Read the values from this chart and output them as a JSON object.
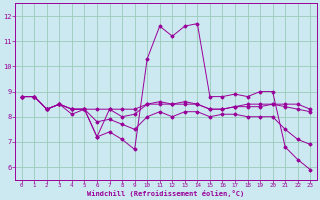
{
  "xlabel": "Windchill (Refroidissement éolien,°C)",
  "xlim": [
    -0.5,
    23.5
  ],
  "ylim": [
    5.5,
    12.5
  ],
  "yticks": [
    6,
    7,
    8,
    9,
    10,
    11,
    12
  ],
  "xticks": [
    0,
    1,
    2,
    3,
    4,
    5,
    6,
    7,
    8,
    9,
    10,
    11,
    12,
    13,
    14,
    15,
    16,
    17,
    18,
    19,
    20,
    21,
    22,
    23
  ],
  "bg_color": "#cce8f0",
  "line_color": "#990099",
  "grid_color": "#99ccbb",
  "lines": [
    {
      "x": [
        0,
        1,
        2,
        3,
        4,
        5,
        6,
        7,
        8,
        9,
        10,
        11,
        12,
        13,
        14,
        15,
        16,
        17,
        18,
        19,
        20,
        21,
        22,
        23
      ],
      "y": [
        8.8,
        8.8,
        8.3,
        8.5,
        8.3,
        8.3,
        7.2,
        7.4,
        7.1,
        6.7,
        10.3,
        11.6,
        11.2,
        11.6,
        11.7,
        8.8,
        8.8,
        8.9,
        8.8,
        9.0,
        9.0,
        6.8,
        6.3,
        5.9
      ]
    },
    {
      "x": [
        0,
        1,
        2,
        3,
        4,
        5,
        6,
        7,
        8,
        9,
        10,
        11,
        12,
        13,
        14,
        15,
        16,
        17,
        18,
        19,
        20,
        21,
        22,
        23
      ],
      "y": [
        8.8,
        8.8,
        8.3,
        8.5,
        8.3,
        8.3,
        8.3,
        8.3,
        8.3,
        8.3,
        8.5,
        8.5,
        8.5,
        8.5,
        8.5,
        8.3,
        8.3,
        8.4,
        8.5,
        8.5,
        8.5,
        8.5,
        8.5,
        8.3
      ]
    },
    {
      "x": [
        0,
        1,
        2,
        3,
        4,
        5,
        6,
        7,
        8,
        9,
        10,
        11,
        12,
        13,
        14,
        15,
        16,
        17,
        18,
        19,
        20,
        21,
        22,
        23
      ],
      "y": [
        8.8,
        8.8,
        8.3,
        8.5,
        8.1,
        8.3,
        7.2,
        8.3,
        8.0,
        8.1,
        8.5,
        8.6,
        8.5,
        8.6,
        8.5,
        8.3,
        8.3,
        8.4,
        8.4,
        8.4,
        8.5,
        8.4,
        8.3,
        8.2
      ]
    },
    {
      "x": [
        0,
        1,
        2,
        3,
        4,
        5,
        6,
        7,
        8,
        9,
        10,
        11,
        12,
        13,
        14,
        15,
        16,
        17,
        18,
        19,
        20,
        21,
        22,
        23
      ],
      "y": [
        8.8,
        8.8,
        8.3,
        8.5,
        8.3,
        8.3,
        7.8,
        7.9,
        7.7,
        7.5,
        8.0,
        8.2,
        8.0,
        8.2,
        8.2,
        8.0,
        8.1,
        8.1,
        8.0,
        8.0,
        8.0,
        7.5,
        7.1,
        6.9
      ]
    }
  ]
}
